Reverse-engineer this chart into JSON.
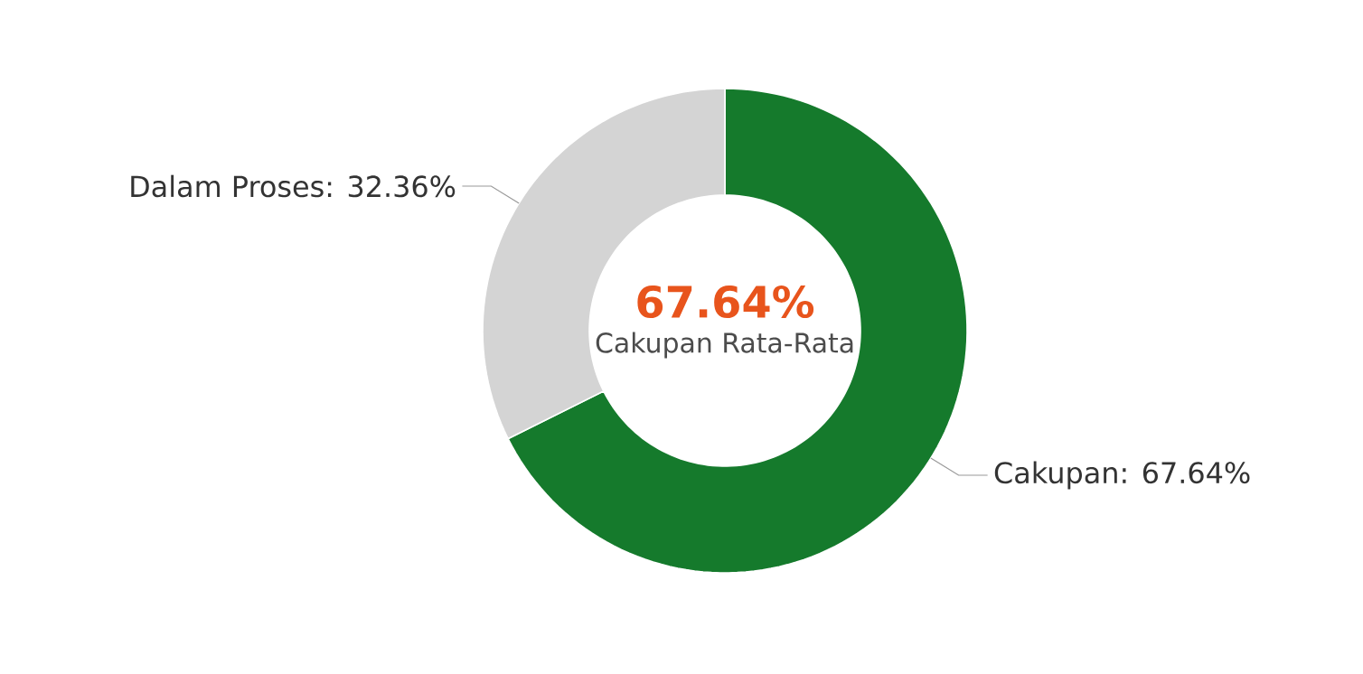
{
  "chart_data": {
    "type": "donut",
    "categories": [
      "Dalam Proses",
      "Cakupan"
    ],
    "values": [
      32.36,
      67.64
    ],
    "value_labels": [
      ": 32.36%",
      ": 67.64%"
    ],
    "colors": [
      "#d4d4d4",
      "#157a2c"
    ],
    "annotations": [
      "67.64%",
      "Cakupan Rata-Rata"
    ]
  }
}
